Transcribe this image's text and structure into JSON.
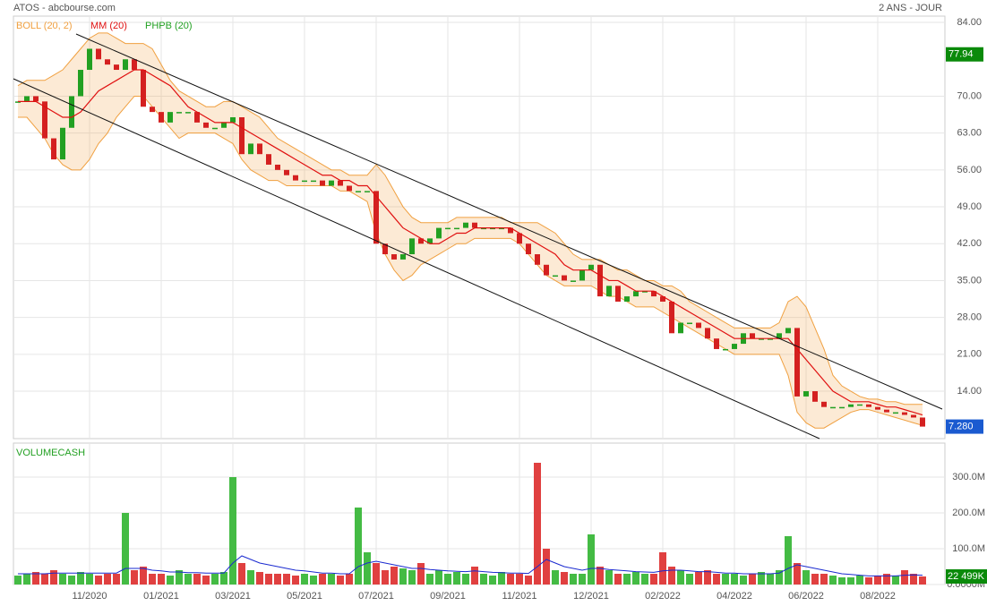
{
  "chart_data": {
    "type": "candlestick",
    "title": "ATOS - abcbourse.com",
    "subtitle": "2 ANS - JOUR",
    "legend": [
      "BOLL (20, 2)",
      "MM (20)",
      "PHPB (20)"
    ],
    "categories": [
      null,
      null,
      null,
      null,
      null,
      null,
      null,
      null,
      "11/2020",
      null,
      null,
      null,
      null,
      null,
      null,
      null,
      "01/2021",
      null,
      null,
      null,
      null,
      null,
      null,
      null,
      "03/2021",
      null,
      null,
      null,
      null,
      null,
      null,
      null,
      "05/2021",
      null,
      null,
      null,
      null,
      null,
      null,
      null,
      "07/2021",
      null,
      null,
      null,
      null,
      null,
      null,
      null,
      "09/2021",
      null,
      null,
      null,
      null,
      null,
      null,
      null,
      "11/2021",
      null,
      null,
      null,
      null,
      null,
      null,
      null,
      "12/2021",
      null,
      null,
      null,
      null,
      null,
      null,
      null,
      "02/2022",
      null,
      null,
      null,
      null,
      null,
      null,
      null,
      "04/2022",
      null,
      null,
      null,
      null,
      null,
      null,
      null,
      "06/2022",
      null,
      null,
      null,
      null,
      null,
      null,
      null,
      "08/2022",
      null,
      null,
      null,
      null,
      null
    ],
    "ylim": [
      5,
      85.2
    ],
    "yticks": [
      {
        "value": 84,
        "label": "84.00"
      },
      {
        "value": 70,
        "label": "70.00"
      },
      {
        "value": 63,
        "label": "63.00"
      },
      {
        "value": 56,
        "label": "56.00"
      },
      {
        "value": 49,
        "label": "49.00"
      },
      {
        "value": 42,
        "label": "42.00"
      },
      {
        "value": 35,
        "label": "35.00"
      },
      {
        "value": 28,
        "label": "28.00"
      },
      {
        "value": 21,
        "label": "21.00"
      },
      {
        "value": 14,
        "label": "14.00"
      }
    ],
    "grid": true,
    "up_color": "#22a022",
    "down_color": "#d42020",
    "close": [
      69,
      70,
      69,
      62,
      58,
      64,
      70,
      75,
      79,
      77,
      76,
      75,
      77,
      75,
      68,
      67,
      65,
      67,
      67,
      67,
      65,
      64,
      64,
      65,
      66,
      59,
      61,
      59,
      57,
      56,
      55,
      54,
      54,
      54,
      53,
      54,
      53,
      52,
      52,
      52,
      42,
      40,
      39,
      40,
      43,
      42,
      43,
      45,
      45,
      45,
      46,
      45,
      45,
      45,
      45,
      44,
      42,
      40,
      38,
      36,
      36,
      35,
      35,
      37,
      38,
      32,
      34,
      31,
      32,
      33,
      33,
      32,
      31,
      25,
      27,
      27,
      26,
      24,
      22,
      22,
      23,
      25,
      24,
      24,
      24,
      25,
      26,
      13,
      14,
      12,
      11,
      11,
      11,
      11.5,
      11.5,
      11,
      10.5,
      10,
      10,
      9.5,
      9,
      7.28
    ],
    "last_label": "7.280",
    "highlight": 77.94,
    "series": [
      {
        "name": "MM (20)",
        "color": "#e01010",
        "values": [
          69,
          69,
          69,
          68,
          67,
          66,
          66,
          67,
          69,
          71,
          72,
          73,
          74,
          75,
          75,
          74,
          73,
          72,
          70,
          68,
          67,
          66,
          65,
          65,
          65,
          64,
          63,
          62,
          61,
          60,
          59,
          58,
          57,
          56,
          55,
          55,
          54,
          54,
          53,
          53,
          51,
          49,
          47,
          45,
          44,
          43,
          42,
          42,
          43,
          44,
          44,
          45,
          45,
          45,
          45,
          45,
          44,
          43,
          42,
          41,
          40,
          38,
          37,
          37,
          37,
          36,
          35,
          35,
          34,
          33,
          33,
          33,
          32,
          31,
          30,
          29,
          28,
          27,
          26,
          25,
          24,
          24,
          24,
          24,
          24,
          24,
          24,
          22,
          20,
          18,
          16,
          14,
          13,
          12,
          12,
          12,
          11.5,
          11,
          11,
          10.5,
          10,
          9.5
        ]
      },
      {
        "name": "BOLL (20, 2)",
        "color": "#f0a040",
        "upper": [
          72,
          73,
          73,
          73,
          74,
          75,
          77,
          79,
          81,
          82,
          82,
          81,
          80,
          80,
          80,
          79,
          76,
          73,
          71,
          70,
          69,
          68,
          68,
          69,
          69,
          68,
          67,
          66,
          64,
          62,
          61,
          60,
          59,
          58,
          57,
          56,
          56,
          55,
          55,
          55,
          57,
          55,
          52,
          49,
          47,
          46,
          46,
          46,
          46,
          47,
          47,
          47,
          47,
          47,
          47,
          46,
          46,
          46,
          46,
          45,
          44,
          42,
          40,
          39,
          39,
          39,
          38,
          37,
          37,
          36,
          35,
          35,
          34,
          34,
          33,
          31,
          30,
          29,
          28,
          27,
          26,
          26,
          26,
          26,
          26,
          27,
          31,
          32,
          30,
          26,
          22,
          17,
          15,
          14,
          13,
          12.5,
          12.5,
          12,
          12,
          11.5,
          11.5,
          11.5
        ],
        "lower": [
          66,
          66,
          64,
          62,
          59,
          57,
          56,
          56,
          58,
          61,
          63,
          66,
          68,
          70,
          70,
          68,
          66,
          64,
          62,
          63,
          63,
          63,
          63,
          62,
          61,
          58,
          56,
          55,
          54,
          54,
          53,
          53,
          53,
          53,
          53,
          53,
          52,
          52,
          51,
          50,
          44,
          40,
          37,
          35,
          36,
          38,
          39,
          40,
          41,
          42,
          42,
          43,
          43,
          43,
          43,
          43,
          42,
          40,
          38,
          36,
          35,
          34,
          34,
          34,
          34,
          33,
          32,
          32,
          31,
          30,
          30,
          30,
          29,
          28,
          27,
          26,
          25,
          24,
          23,
          22,
          21,
          21,
          21,
          21,
          21,
          21,
          17,
          10,
          8,
          7,
          7,
          8,
          9,
          10,
          10.5,
          10.5,
          10,
          9.5,
          9,
          8.5,
          8,
          7.5
        ]
      }
    ],
    "volume": {
      "title": "VOLUMECASH",
      "ylim": [
        0,
        395
      ],
      "yticks": [
        {
          "value": 300,
          "label": "300.0M"
        },
        {
          "value": 200,
          "label": "200.0M"
        },
        {
          "value": 100,
          "label": "100.0M"
        },
        {
          "value": 0,
          "label": "0.0000M"
        }
      ],
      "values": [
        25,
        30,
        35,
        30,
        40,
        30,
        25,
        35,
        30,
        25,
        30,
        30,
        200,
        40,
        50,
        30,
        30,
        25,
        40,
        30,
        30,
        25,
        30,
        35,
        300,
        60,
        40,
        35,
        30,
        30,
        30,
        25,
        30,
        25,
        30,
        30,
        25,
        30,
        215,
        90,
        60,
        40,
        50,
        45,
        40,
        60,
        30,
        40,
        30,
        35,
        30,
        50,
        30,
        25,
        35,
        30,
        30,
        25,
        340,
        100,
        40,
        35,
        30,
        30,
        140,
        50,
        40,
        30,
        30,
        35,
        30,
        30,
        90,
        50,
        40,
        30,
        35,
        40,
        30,
        30,
        30,
        25,
        30,
        35,
        30,
        40,
        135,
        60,
        40,
        30,
        30,
        25,
        20,
        20,
        25,
        20,
        25,
        30,
        25,
        40,
        30,
        22.499
      ],
      "last_label": "22 499K",
      "average": {
        "color": "#1a2ad0",
        "values": [
          30,
          30,
          30,
          30,
          32,
          32,
          32,
          32,
          32,
          32,
          32,
          32,
          45,
          45,
          45,
          40,
          38,
          35,
          35,
          33,
          33,
          32,
          32,
          32,
          60,
          80,
          70,
          60,
          55,
          50,
          45,
          40,
          38,
          35,
          32,
          32,
          30,
          30,
          50,
          60,
          65,
          60,
          55,
          50,
          45,
          45,
          42,
          40,
          38,
          37,
          36,
          38,
          36,
          34,
          33,
          32,
          32,
          31,
          50,
          70,
          60,
          50,
          45,
          40,
          45,
          45,
          42,
          40,
          38,
          36,
          35,
          34,
          38,
          40,
          40,
          38,
          36,
          36,
          34,
          32,
          32,
          30,
          30,
          30,
          30,
          32,
          45,
          55,
          50,
          45,
          40,
          35,
          30,
          28,
          26,
          24,
          24,
          24,
          24,
          26,
          27,
          26
        ]
      }
    }
  }
}
